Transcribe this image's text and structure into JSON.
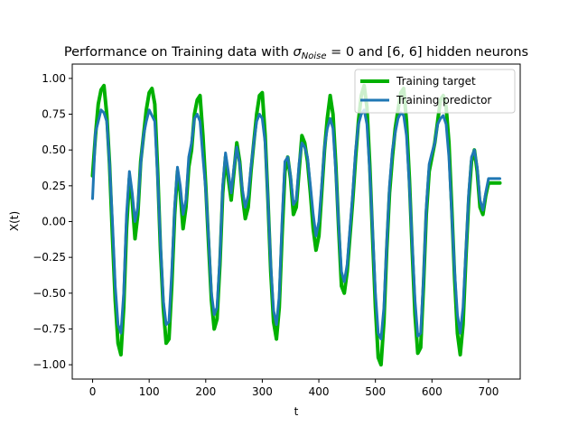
{
  "chart_data": {
    "type": "line",
    "title": {
      "prefix": "Performance on Training data with ",
      "sigma": "σ",
      "sigma_sub": "Noise",
      "suffix": " = 0 and [6, 6] hidden neurons"
    },
    "xlabel": "t",
    "ylabel": "X(t)",
    "xlim": [
      -36,
      756
    ],
    "ylim": [
      -1.1,
      1.1
    ],
    "xticks": [
      0,
      100,
      200,
      300,
      400,
      500,
      600,
      700
    ],
    "yticks": [
      -1.0,
      -0.75,
      -0.5,
      -0.25,
      0.0,
      0.25,
      0.5,
      0.75,
      1.0
    ],
    "ytick_labels": [
      "−1.00",
      "−0.75",
      "−0.50",
      "−0.25",
      "0.00",
      "0.25",
      "0.50",
      "0.75",
      "1.00"
    ],
    "grid": false,
    "legend_position": "top-right",
    "series": [
      {
        "name": "Training target",
        "color": "#00b000",
        "x": [
          0,
          5,
          10,
          15,
          20,
          25,
          30,
          35,
          40,
          45,
          50,
          55,
          60,
          65,
          70,
          75,
          80,
          85,
          90,
          95,
          100,
          105,
          110,
          115,
          120,
          125,
          130,
          135,
          140,
          145,
          150,
          155,
          160,
          165,
          170,
          175,
          180,
          185,
          190,
          195,
          200,
          205,
          210,
          215,
          220,
          225,
          230,
          235,
          240,
          245,
          250,
          255,
          260,
          265,
          270,
          275,
          280,
          285,
          290,
          295,
          300,
          305,
          310,
          315,
          320,
          325,
          330,
          335,
          340,
          345,
          350,
          355,
          360,
          365,
          370,
          375,
          380,
          385,
          390,
          395,
          400,
          405,
          410,
          415,
          420,
          425,
          430,
          435,
          440,
          445,
          450,
          455,
          460,
          465,
          470,
          475,
          480,
          485,
          490,
          495,
          500,
          505,
          510,
          515,
          520,
          525,
          530,
          535,
          540,
          545,
          550,
          555,
          560,
          565,
          570,
          575,
          580,
          585,
          590,
          595,
          600,
          605,
          610,
          615,
          620,
          625,
          630,
          635,
          640,
          645,
          650,
          655,
          660,
          665,
          670,
          675,
          680,
          685,
          690,
          695,
          700,
          705,
          710,
          715,
          720
        ],
        "values": [
          0.32,
          0.6,
          0.82,
          0.92,
          0.95,
          0.75,
          0.4,
          -0.1,
          -0.55,
          -0.85,
          -0.93,
          -0.6,
          -0.05,
          0.3,
          0.15,
          -0.12,
          0.05,
          0.42,
          0.6,
          0.78,
          0.9,
          0.93,
          0.82,
          0.35,
          -0.2,
          -0.6,
          -0.85,
          -0.82,
          -0.45,
          0.05,
          0.35,
          0.2,
          -0.05,
          0.1,
          0.38,
          0.5,
          0.75,
          0.85,
          0.88,
          0.6,
          0.25,
          -0.15,
          -0.55,
          -0.75,
          -0.68,
          -0.3,
          0.2,
          0.45,
          0.3,
          0.15,
          0.35,
          0.55,
          0.42,
          0.18,
          0.02,
          0.1,
          0.35,
          0.55,
          0.75,
          0.88,
          0.9,
          0.6,
          0.15,
          -0.35,
          -0.7,
          -0.82,
          -0.6,
          -0.1,
          0.35,
          0.45,
          0.3,
          0.05,
          0.1,
          0.35,
          0.6,
          0.55,
          0.42,
          0.2,
          -0.05,
          -0.2,
          -0.1,
          0.2,
          0.5,
          0.72,
          0.88,
          0.75,
          0.4,
          -0.05,
          -0.45,
          -0.5,
          -0.35,
          -0.1,
          0.15,
          0.45,
          0.7,
          0.88,
          0.95,
          0.8,
          0.4,
          -0.1,
          -0.6,
          -0.95,
          -1.0,
          -0.7,
          -0.2,
          0.2,
          0.45,
          0.65,
          0.78,
          0.9,
          0.93,
          0.7,
          0.3,
          -0.2,
          -0.65,
          -0.92,
          -0.88,
          -0.45,
          0.05,
          0.35,
          0.45,
          0.55,
          0.7,
          0.85,
          0.88,
          0.8,
          0.55,
          0.1,
          -0.4,
          -0.78,
          -0.93,
          -0.72,
          -0.25,
          0.15,
          0.42,
          0.5,
          0.35,
          0.1,
          0.05,
          0.18,
          0.27,
          0.27,
          0.27,
          0.27,
          0.27
        ]
      },
      {
        "name": "Training predictor",
        "color": "#1f77b4",
        "x": [
          0,
          5,
          10,
          15,
          20,
          25,
          30,
          35,
          40,
          45,
          50,
          55,
          60,
          65,
          70,
          75,
          80,
          85,
          90,
          95,
          100,
          105,
          110,
          115,
          120,
          125,
          130,
          135,
          140,
          145,
          150,
          155,
          160,
          165,
          170,
          175,
          180,
          185,
          190,
          195,
          200,
          205,
          210,
          215,
          220,
          225,
          230,
          235,
          240,
          245,
          250,
          255,
          260,
          265,
          270,
          275,
          280,
          285,
          290,
          295,
          300,
          305,
          310,
          315,
          320,
          325,
          330,
          335,
          340,
          345,
          350,
          355,
          360,
          365,
          370,
          375,
          380,
          385,
          390,
          395,
          400,
          405,
          410,
          415,
          420,
          425,
          430,
          435,
          440,
          445,
          450,
          455,
          460,
          465,
          470,
          475,
          480,
          485,
          490,
          495,
          500,
          505,
          510,
          515,
          520,
          525,
          530,
          535,
          540,
          545,
          550,
          555,
          560,
          565,
          570,
          575,
          580,
          585,
          590,
          595,
          600,
          605,
          610,
          615,
          620,
          625,
          630,
          635,
          640,
          645,
          650,
          655,
          660,
          665,
          670,
          675,
          680,
          685,
          690,
          695,
          700,
          705,
          710,
          715,
          720
        ],
        "values": [
          0.16,
          0.62,
          0.7,
          0.78,
          0.76,
          0.7,
          0.4,
          0.0,
          -0.45,
          -0.72,
          -0.78,
          -0.5,
          0.05,
          0.35,
          0.2,
          0.0,
          0.1,
          0.4,
          0.6,
          0.7,
          0.78,
          0.74,
          0.7,
          0.3,
          -0.15,
          -0.55,
          -0.72,
          -0.7,
          -0.35,
          0.1,
          0.38,
          0.25,
          0.05,
          0.15,
          0.45,
          0.55,
          0.72,
          0.75,
          0.7,
          0.45,
          0.22,
          -0.1,
          -0.5,
          -0.65,
          -0.6,
          -0.25,
          0.25,
          0.48,
          0.35,
          0.2,
          0.38,
          0.52,
          0.4,
          0.22,
          0.1,
          0.18,
          0.38,
          0.55,
          0.7,
          0.75,
          0.72,
          0.55,
          0.15,
          -0.3,
          -0.62,
          -0.72,
          -0.52,
          0.0,
          0.42,
          0.45,
          0.32,
          0.12,
          0.15,
          0.4,
          0.55,
          0.52,
          0.45,
          0.25,
          0.05,
          -0.1,
          0.0,
          0.25,
          0.52,
          0.65,
          0.72,
          0.65,
          0.35,
          -0.02,
          -0.35,
          -0.42,
          -0.3,
          -0.05,
          0.2,
          0.5,
          0.68,
          0.75,
          0.78,
          0.68,
          0.35,
          -0.05,
          -0.5,
          -0.78,
          -0.82,
          -0.6,
          -0.15,
          0.25,
          0.5,
          0.62,
          0.72,
          0.76,
          0.74,
          0.6,
          0.25,
          -0.15,
          -0.55,
          -0.8,
          -0.78,
          -0.4,
          0.1,
          0.4,
          0.48,
          0.55,
          0.68,
          0.72,
          0.74,
          0.68,
          0.45,
          0.05,
          -0.35,
          -0.65,
          -0.78,
          -0.6,
          -0.2,
          0.2,
          0.45,
          0.5,
          0.38,
          0.15,
          0.08,
          0.2,
          0.3,
          0.3,
          0.3,
          0.3,
          0.3
        ]
      }
    ]
  }
}
